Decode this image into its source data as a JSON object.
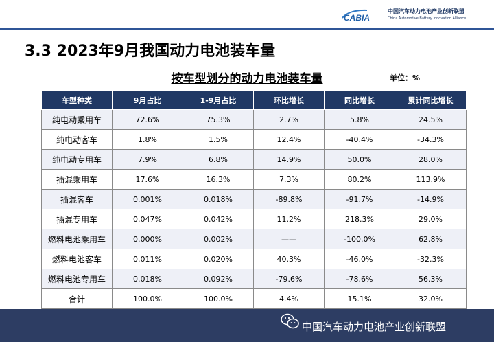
{
  "header": {
    "logo_text": "CABIA",
    "org_name_cn": "中国汽车动力电池产业创新联盟",
    "org_name_en": "China Automotive Battery Innovation Alliance"
  },
  "slide_title": "3.3  2023年9月我国动力电池装车量",
  "table_title": "按车型划分的动力电池装车量",
  "unit_label": "单位：%",
  "table": {
    "headers": [
      "车型种类",
      "9月占比",
      "1-9月占比",
      "环比增长",
      "同比增长",
      "累计同比增长"
    ],
    "rows": [
      [
        "纯电动乘用车",
        "72.6%",
        "75.3%",
        "2.7%",
        "5.8%",
        "24.5%"
      ],
      [
        "纯电动客车",
        "1.8%",
        "1.5%",
        "12.4%",
        "-40.4%",
        "-34.3%"
      ],
      [
        "纯电动专用车",
        "7.9%",
        "6.8%",
        "14.9%",
        "50.0%",
        "28.0%"
      ],
      [
        "插混乘用车",
        "17.6%",
        "16.3%",
        "7.3%",
        "80.2%",
        "113.9%"
      ],
      [
        "插混客车",
        "0.001%",
        "0.018%",
        "-89.8%",
        "-91.7%",
        "-14.9%"
      ],
      [
        "插混专用车",
        "0.047%",
        "0.042%",
        "11.2%",
        "218.3%",
        "29.0%"
      ],
      [
        "燃料电池乘用车",
        "0.000%",
        "0.002%",
        "——",
        "-100.0%",
        "62.8%"
      ],
      [
        "燃料电池客车",
        "0.011%",
        "0.020%",
        "40.3%",
        "-46.0%",
        "-32.3%"
      ],
      [
        "燃料电池专用车",
        "0.018%",
        "0.092%",
        "-79.6%",
        "-78.6%",
        "56.3%"
      ],
      [
        "合计",
        "100.0%",
        "100.0%",
        "4.4%",
        "15.1%",
        "32.0%"
      ]
    ]
  },
  "footer": {
    "wechat_icon": "wechat-icon",
    "text": "中国汽车动力电池产业创新联盟"
  },
  "colors": {
    "header_fill": "#203864",
    "footer_fill": "#2d3d63",
    "band_fill": "#eef0f7"
  }
}
